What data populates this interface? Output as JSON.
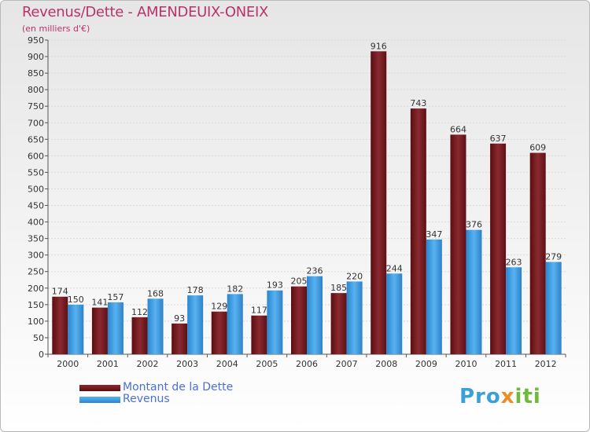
{
  "chart_data": {
    "type": "bar",
    "title": "Revenus/Dette - AMENDEUIX-ONEIX",
    "subtitle": "(en milliers d'€)",
    "categories": [
      "2000",
      "2001",
      "2002",
      "2003",
      "2004",
      "2005",
      "2006",
      "2007",
      "2008",
      "2009",
      "2010",
      "2011",
      "2012"
    ],
    "series": [
      {
        "name": "Montant de la Dette",
        "color": "#7a1a1f",
        "values": [
          174,
          141,
          112,
          93,
          129,
          117,
          205,
          185,
          916,
          743,
          664,
          637,
          609
        ]
      },
      {
        "name": "Revenus",
        "color": "#3d9be0",
        "values": [
          150,
          157,
          168,
          178,
          182,
          193,
          236,
          220,
          244,
          347,
          376,
          263,
          279
        ]
      }
    ],
    "ylim": [
      0,
      950
    ],
    "ytick_step": 50,
    "grid": true,
    "legend_position": "bottom-left",
    "xlabel": "",
    "ylabel": ""
  },
  "logo": {
    "part1": "Pro",
    "part2": "x",
    "part3": "iti"
  }
}
